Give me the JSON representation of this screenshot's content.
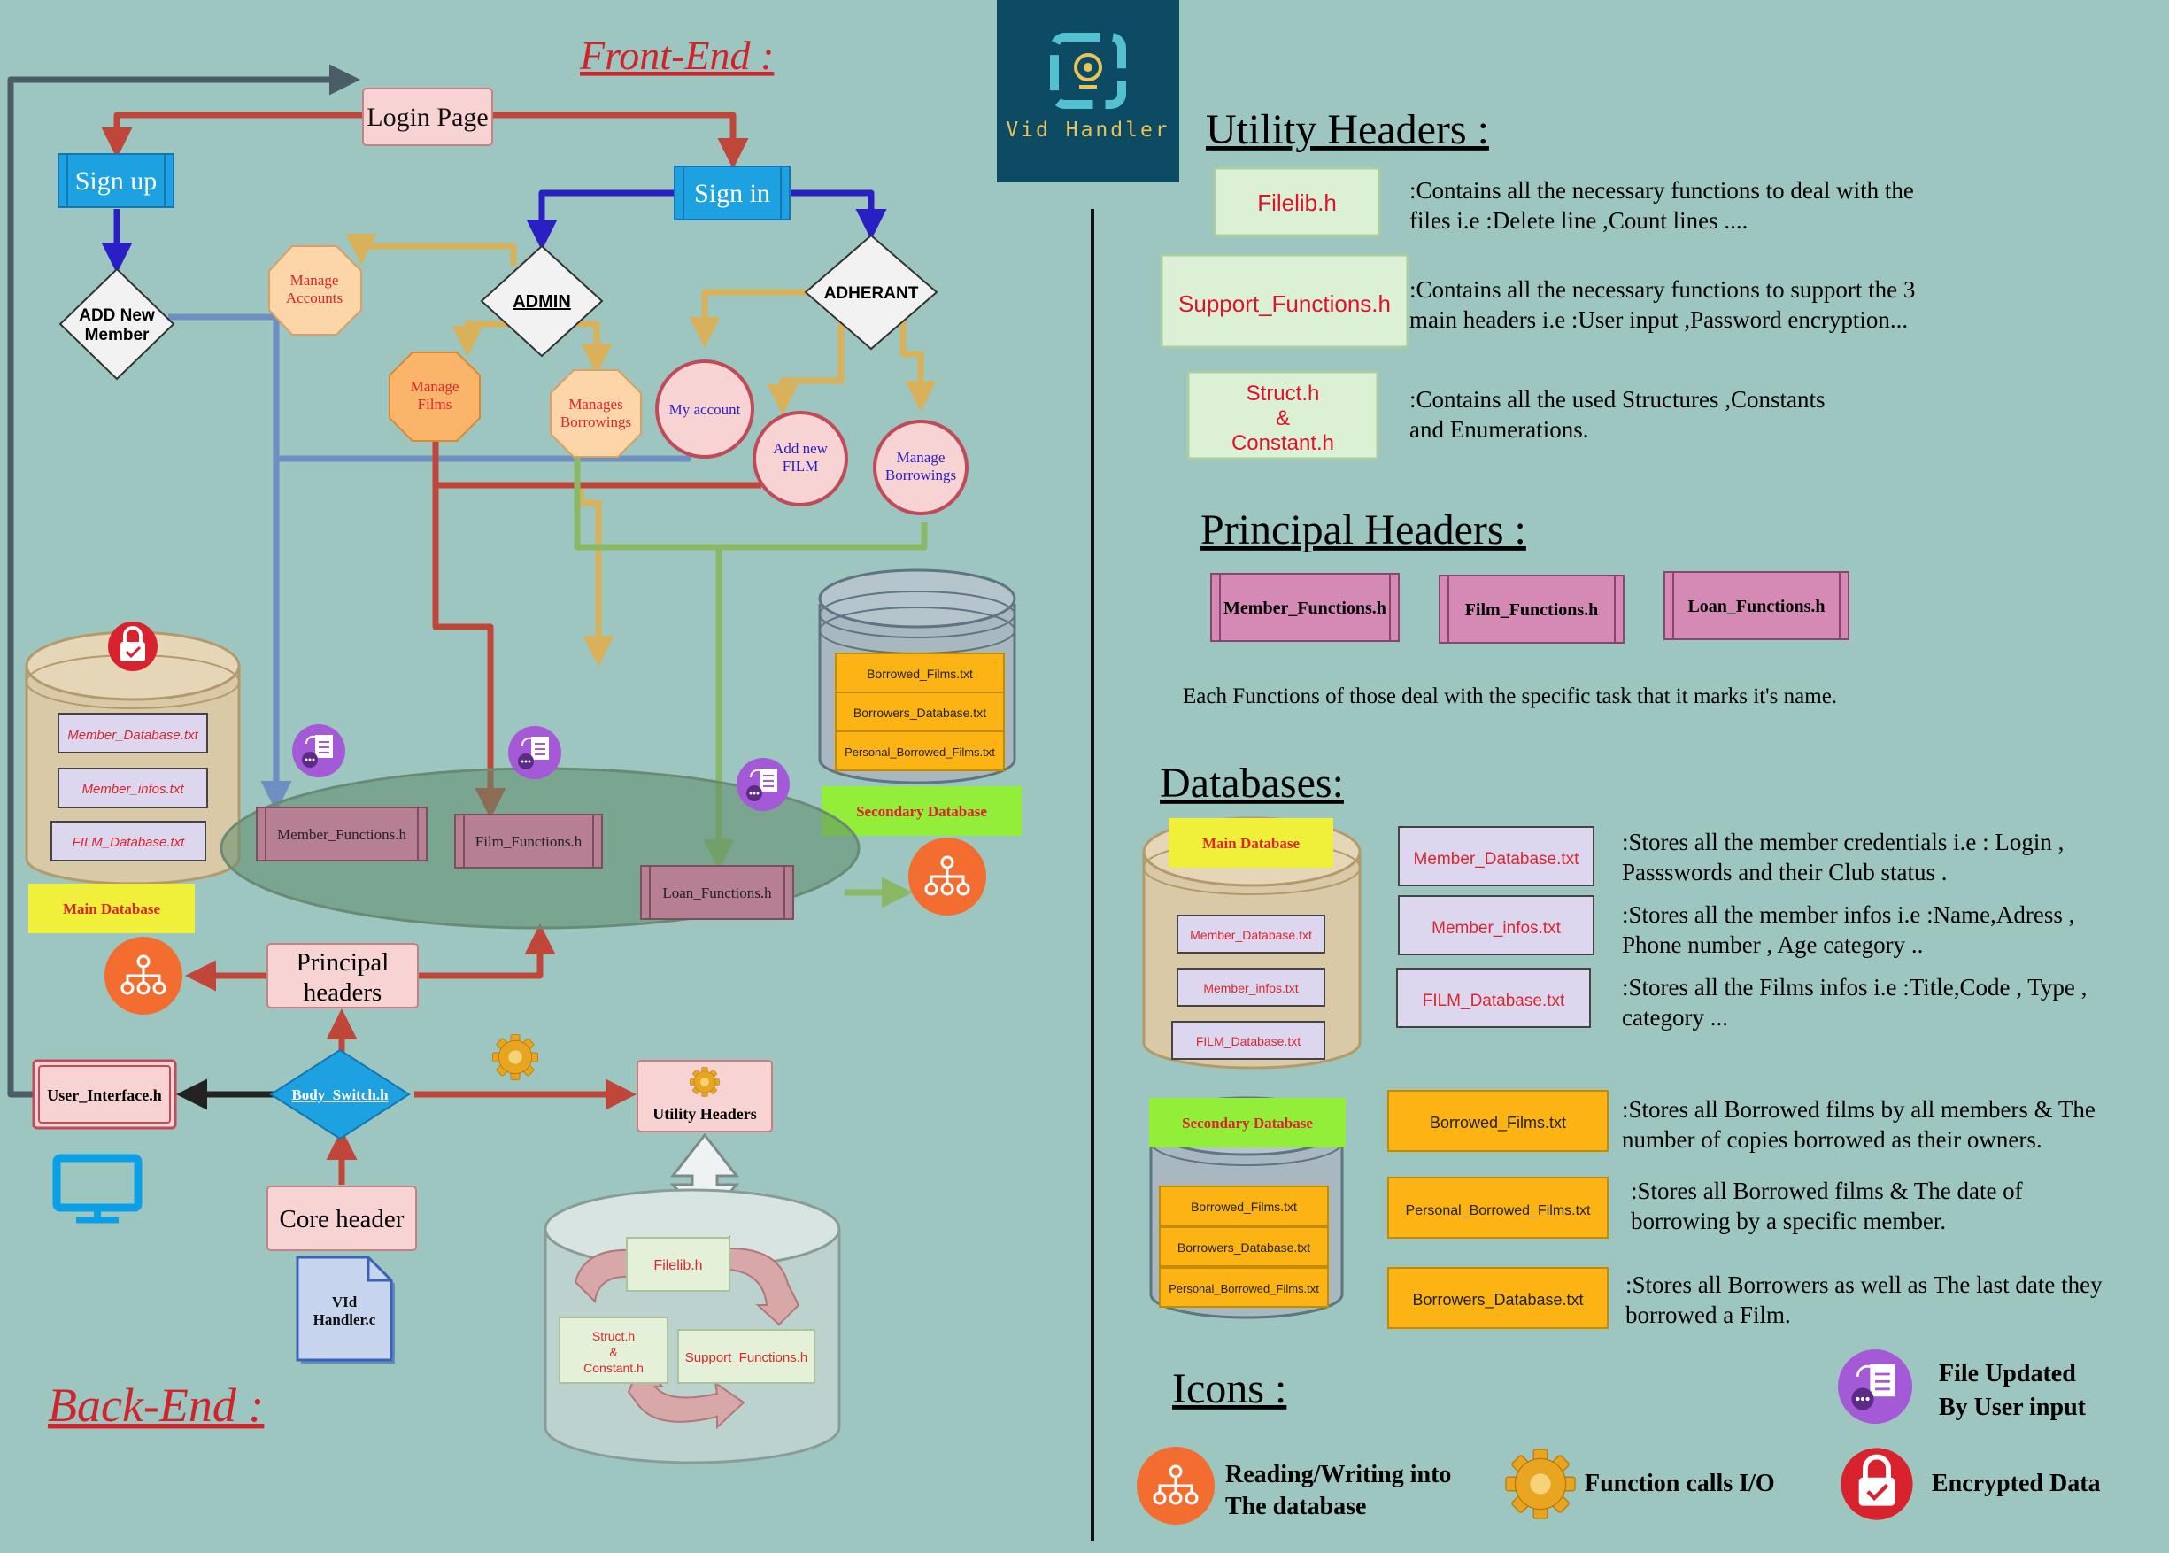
{
  "front_end_title": "Front-End :",
  "back_end_title": "Back-End :",
  "logo_text": "Vid Handler",
  "flow": {
    "login_page": "Login Page",
    "sign_up": "Sign up",
    "sign_in": "Sign in",
    "add_new_member": [
      "ADD New",
      "Member"
    ],
    "admin": "ADMIN",
    "adherant": "ADHERANT",
    "manage_accounts": [
      "Manage",
      "Accounts"
    ],
    "manage_films": [
      "Manage",
      "Films"
    ],
    "manages_borrowings": [
      "Manages",
      "Borrowings"
    ],
    "my_account": "My account",
    "add_new_film": [
      "Add new",
      "FILM"
    ],
    "manage_borrowings": [
      "Manage",
      "Borrowings"
    ]
  },
  "main_db_files": [
    "Member_Database.txt",
    "Member_infos.txt",
    "FILM_Database.txt"
  ],
  "main_db_label": "Main Database",
  "secondary_db_files": [
    "Borrowed_Films.txt",
    "Borrowers_Database.txt",
    "Personal_Borrowed_Films.txt"
  ],
  "secondary_db_label": "Secondary Database",
  "principal_functions": [
    "Member_Functions.h",
    "Film_Functions.h",
    "Loan_Functions.h"
  ],
  "backend": {
    "principal_headers": [
      "Principal",
      "headers"
    ],
    "user_interface": "User_Interface.h",
    "body_switch": "Body_Switch.h",
    "utility_headers": "Utility Headers",
    "core_header": "Core header",
    "main_file": [
      "VId",
      "Handler.c"
    ],
    "filelib": "Filelib.h",
    "struct_h": [
      "Struct.h",
      "&",
      "Constant.h"
    ],
    "support_functions": "Support_Functions.h"
  },
  "utility": {
    "title": "Utility Headers :",
    "items": [
      {
        "name": [
          "Filelib.h"
        ],
        "desc": [
          ":Contains all the necessary functions to deal with the",
          " files  i.e :Delete line ,Count lines ...."
        ]
      },
      {
        "name": [
          "Support_Functions.h"
        ],
        "desc": [
          ":Contains all the necessary functions to support  the 3",
          "main headers  i.e :User input ,Password encryption..."
        ]
      },
      {
        "name": [
          "Struct.h",
          "&",
          "Constant.h"
        ],
        "desc": [
          ":Contains all the used Structures ,Constants",
          " and Enumerations."
        ]
      }
    ]
  },
  "principal": {
    "title": "Principal Headers :",
    "items": [
      "Member_Functions.h",
      "Film_Functions.h",
      "Loan_Functions.h"
    ],
    "note": "Each Functions of those deal with the specific task that it marks it's name."
  },
  "databases": {
    "title": "Databases:",
    "main_label": "Main Database",
    "secondary_label": "Secondary Database",
    "main_items": [
      {
        "name": "Member_Database.txt",
        "desc": [
          ":Stores all the member credentials i.e : Login ,",
          "Passswords and their Club status ."
        ]
      },
      {
        "name": "Member_infos.txt",
        "desc": [
          ":Stores all the member infos i.e :Name,Adress ,",
          "Phone number , Age category .."
        ]
      },
      {
        "name": "FILM_Database.txt",
        "desc": [
          ":Stores all the Films infos i.e :Title,Code , Type ,",
          " category ..."
        ]
      }
    ],
    "secondary_items": [
      {
        "name": "Borrowed_Films.txt",
        "desc": [
          ":Stores all Borrowed films by all members & The",
          "number of copies borrowed as their owners."
        ]
      },
      {
        "name": "Personal_Borrowed_Films.txt",
        "desc": [
          ":Stores all Borrowed films  & The date of",
          "borrowing by a specific member."
        ]
      },
      {
        "name": "Borrowers_Database.txt",
        "desc": [
          ":Stores all Borrowers  as well as The last date they",
          "borrowed a Film."
        ]
      }
    ]
  },
  "icons": {
    "title": "Icons :",
    "file_updated": [
      "File Updated",
      "By User input"
    ],
    "reading_writing": [
      "Reading/Writing  into",
      "The database"
    ],
    "function_calls": "Function calls I/O",
    "encrypted": "Encrypted Data"
  },
  "colors": {
    "background": "#9cc6bf",
    "red_arrow": "#c0463a",
    "blue_arrow": "#2a1fc2",
    "gold_arrow": "#d9b15a",
    "steel_arrow": "#6e8fc2",
    "green_arrow": "#8bb865",
    "title_red": "#d1232a",
    "logo_bg": "#0d4a63"
  }
}
